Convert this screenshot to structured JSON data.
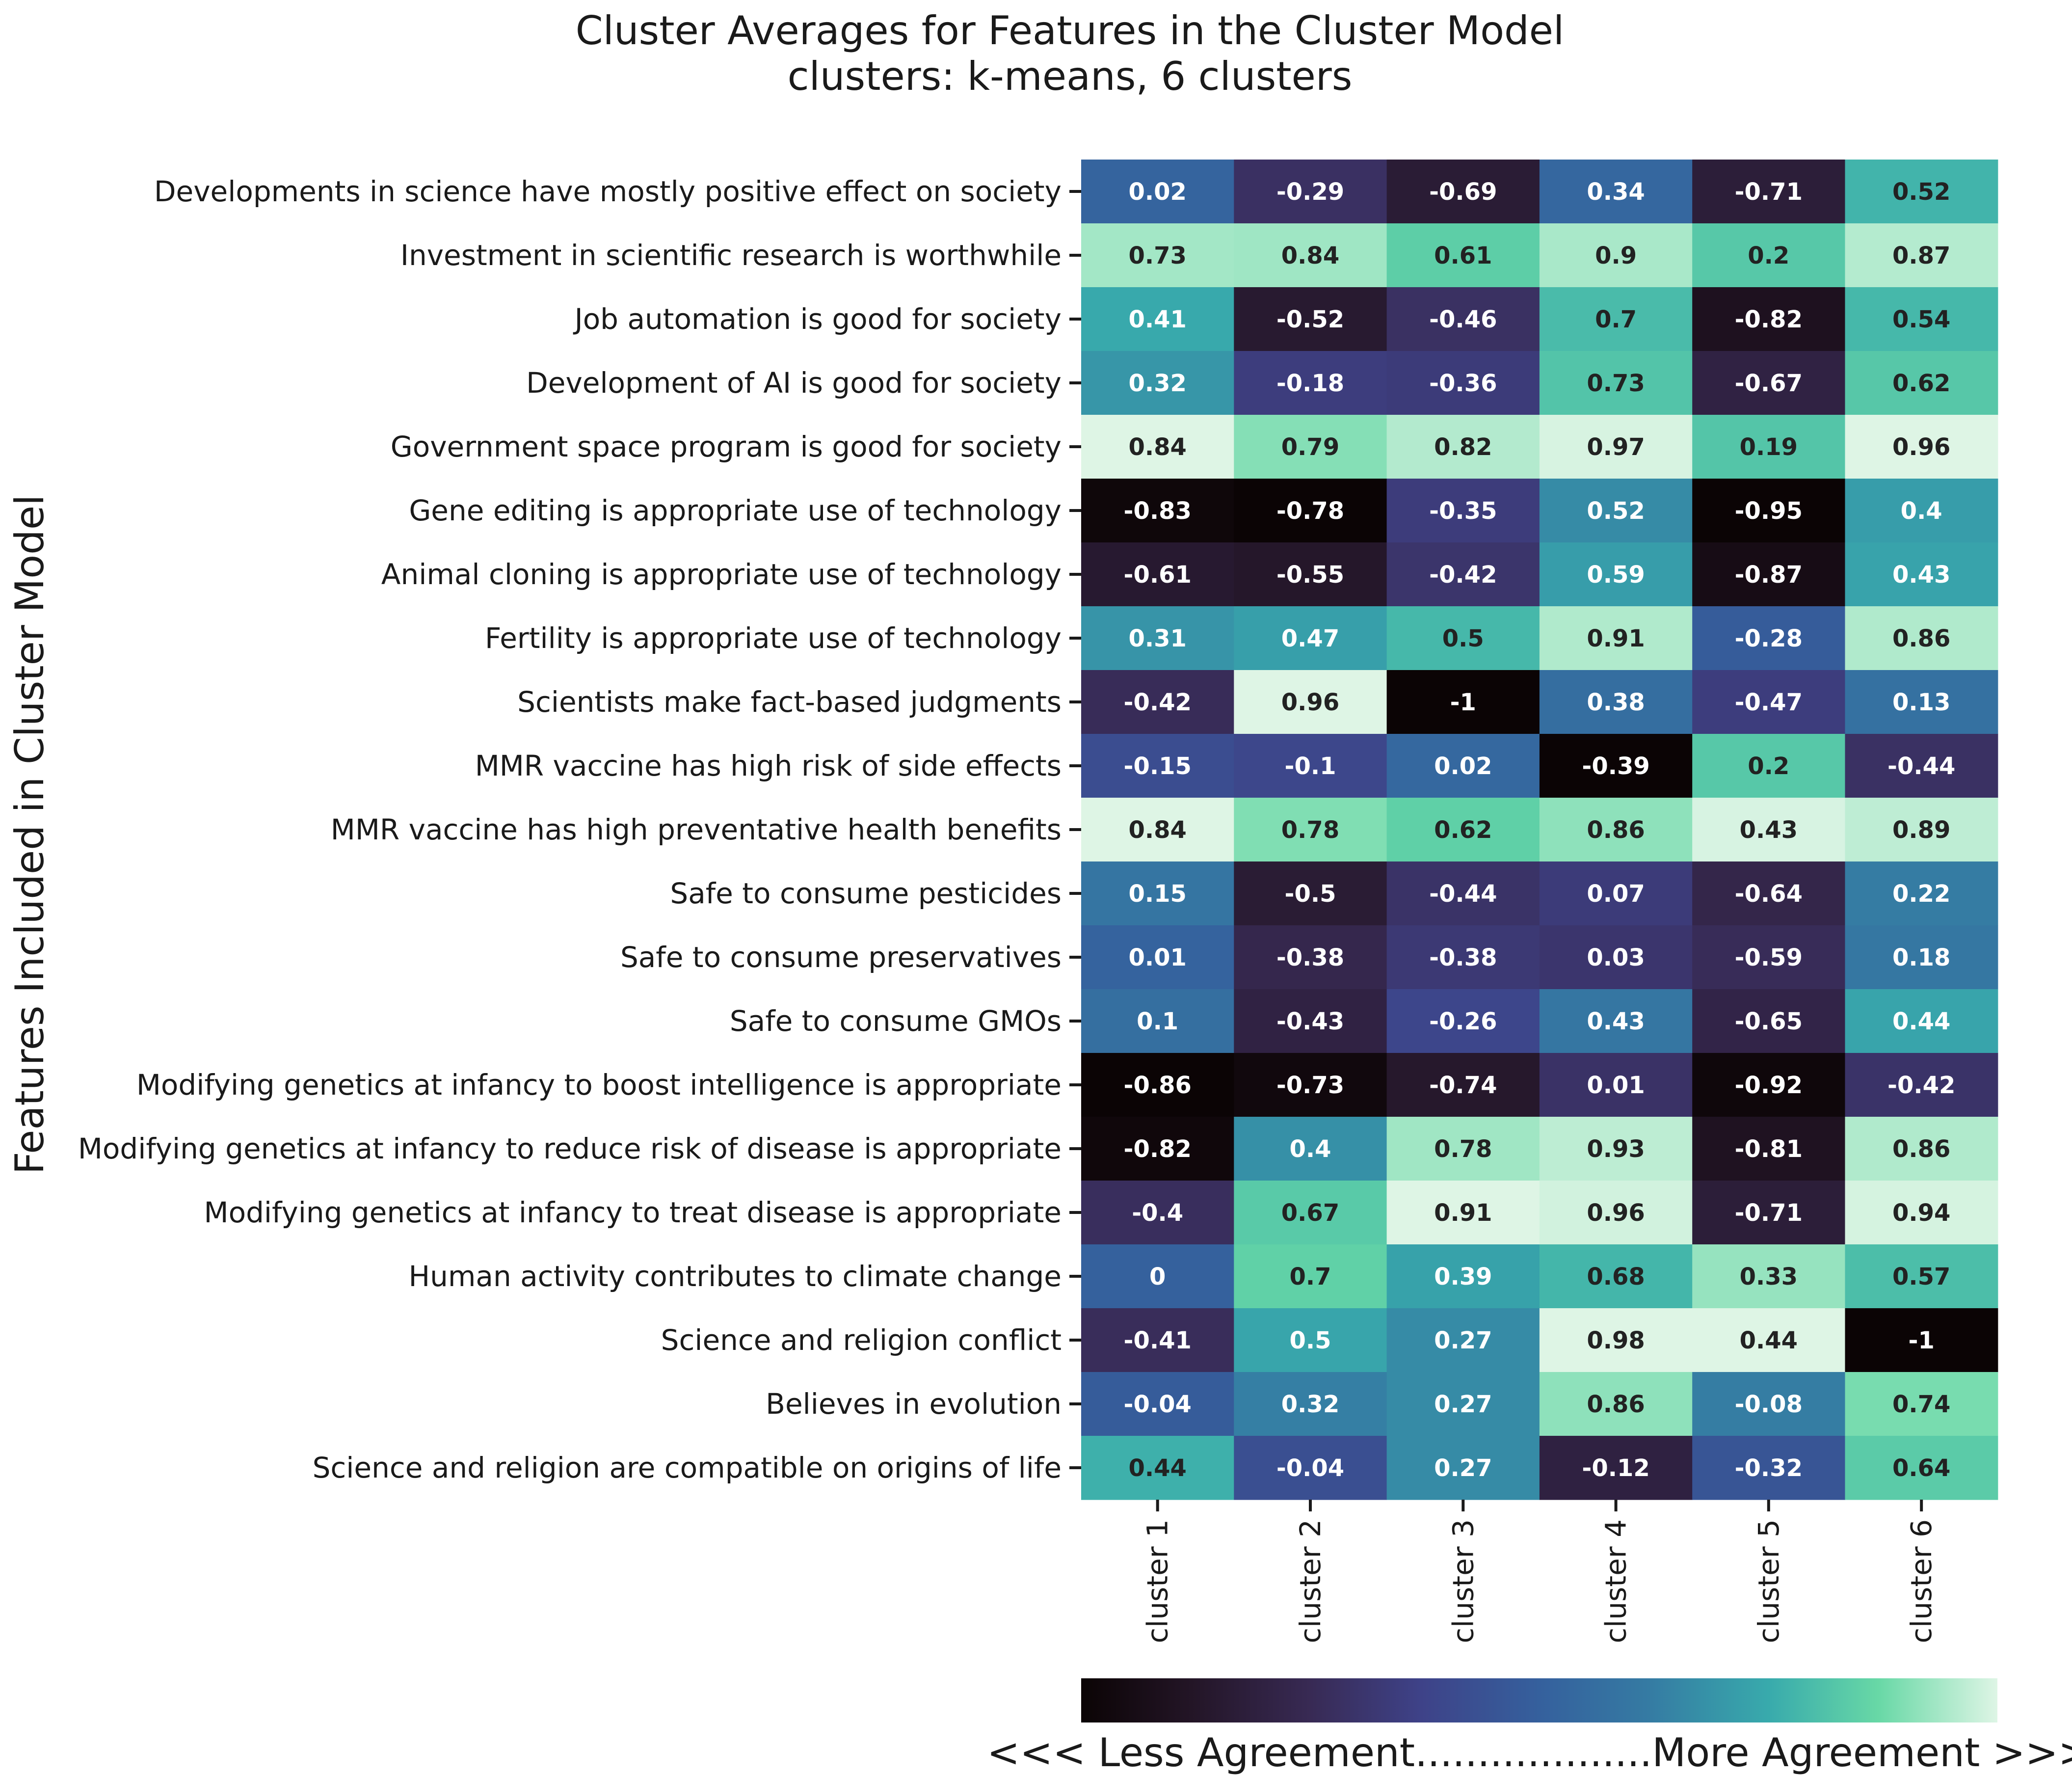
{
  "chart_data": {
    "type": "heatmap",
    "title": "Cluster Averages for Features in the Cluster Model",
    "subtitle": "clusters: k-means, 6 clusters",
    "ylabel": "Features Included in Cluster Model",
    "xlabel": "",
    "columns": [
      "cluster 1",
      "cluster 2",
      "cluster 3",
      "cluster 4",
      "cluster 5",
      "cluster 6"
    ],
    "rows": [
      "Developments in science have mostly positive effect on society",
      "Investment in scientific research is worthwhile",
      "Job automation is good for society",
      "Development of AI is good for society",
      "Government space program is good for society",
      "Gene editing is appropriate use of technology",
      "Animal cloning is appropriate use of technology",
      "Fertility is appropriate use of technology",
      "Scientists make fact-based judgments",
      "MMR vaccine has high risk of side effects",
      "MMR vaccine has high preventative health benefits",
      "Safe to consume pesticides",
      "Safe to consume preservatives",
      "Safe to consume GMOs",
      "Modifying genetics at infancy to boost intelligence is appropriate",
      "Modifying genetics at infancy to reduce risk of disease is appropriate",
      "Modifying genetics at infancy to treat disease is appropriate",
      "Human activity contributes to climate change",
      "Science and religion conflict",
      "Believes in evolution",
      "Science and religion are compatible on origins of life"
    ],
    "values": [
      [
        0.02,
        -0.29,
        -0.69,
        0.34,
        -0.71,
        0.52
      ],
      [
        0.73,
        0.84,
        0.61,
        0.9,
        0.2,
        0.87
      ],
      [
        0.41,
        -0.52,
        -0.46,
        0.7,
        -0.82,
        0.54
      ],
      [
        0.32,
        -0.18,
        -0.36,
        0.73,
        -0.67,
        0.62
      ],
      [
        0.84,
        0.79,
        0.82,
        0.97,
        0.19,
        0.96
      ],
      [
        -0.83,
        -0.78,
        -0.35,
        0.52,
        -0.95,
        0.4
      ],
      [
        -0.61,
        -0.55,
        -0.42,
        0.59,
        -0.87,
        0.43
      ],
      [
        0.31,
        0.47,
        0.5,
        0.91,
        -0.28,
        0.86
      ],
      [
        -0.42,
        0.96,
        -1,
        0.38,
        -0.47,
        0.13
      ],
      [
        -0.15,
        -0.1,
        0.02,
        -0.39,
        0.2,
        -0.44
      ],
      [
        0.84,
        0.78,
        0.62,
        0.86,
        0.43,
        0.89
      ],
      [
        0.15,
        -0.5,
        -0.44,
        0.07,
        -0.64,
        0.22
      ],
      [
        0.01,
        -0.38,
        -0.38,
        0.03,
        -0.59,
        0.18
      ],
      [
        0.1,
        -0.43,
        -0.26,
        0.43,
        -0.65,
        0.44
      ],
      [
        -0.86,
        -0.73,
        -0.74,
        0.01,
        -0.92,
        -0.42
      ],
      [
        -0.82,
        0.4,
        0.78,
        0.93,
        -0.81,
        0.86
      ],
      [
        -0.4,
        0.67,
        0.91,
        0.96,
        -0.71,
        0.94
      ],
      [
        0,
        0.7,
        0.39,
        0.68,
        0.33,
        0.57
      ],
      [
        -0.41,
        0.5,
        0.27,
        0.98,
        0.44,
        -1
      ],
      [
        -0.04,
        0.32,
        0.27,
        0.86,
        -0.08,
        0.74
      ],
      [
        0.44,
        -0.04,
        0.27,
        -0.12,
        -0.32,
        0.64
      ]
    ],
    "color_scale": "mako",
    "color_normalization": "per column",
    "colorbar": {
      "orientation": "horizontal",
      "placement": "bottom",
      "label": "<<< Less Agreement...................More Agreement >>>"
    }
  }
}
